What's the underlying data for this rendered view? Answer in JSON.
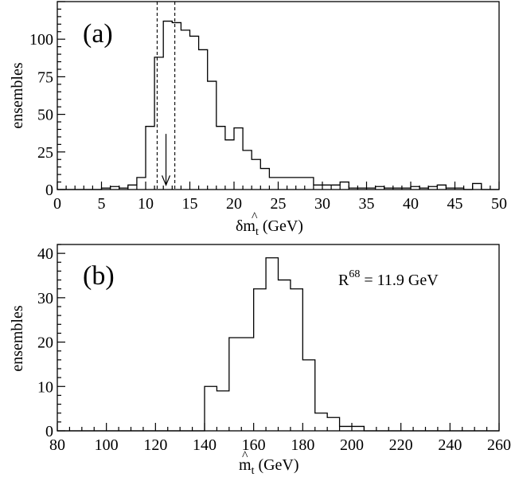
{
  "chart_data": [
    {
      "type": "histogram",
      "panel_label": "(a)",
      "ylabel": "ensembles",
      "xlabel": {
        "main": "δm",
        "hat": "^",
        "sub": "t",
        "unit": " (GeV)"
      },
      "xlim": [
        0,
        50
      ],
      "ylim": [
        0,
        125
      ],
      "xticks": [
        0,
        5,
        10,
        15,
        20,
        25,
        30,
        35,
        40,
        45,
        50
      ],
      "yticks": [
        0,
        25,
        50,
        75,
        100
      ],
      "bin_width": 1,
      "bins": [
        [
          5,
          1
        ],
        [
          6,
          2
        ],
        [
          7,
          1
        ],
        [
          8,
          3
        ],
        [
          9,
          8
        ],
        [
          10,
          42
        ],
        [
          11,
          88
        ],
        [
          12,
          112
        ],
        [
          13,
          111
        ],
        [
          14,
          106
        ],
        [
          15,
          102
        ],
        [
          16,
          93
        ],
        [
          17,
          72
        ],
        [
          18,
          42
        ],
        [
          19,
          33
        ],
        [
          20,
          41
        ],
        [
          21,
          26
        ],
        [
          22,
          20
        ],
        [
          23,
          14
        ],
        [
          24,
          8
        ],
        [
          25,
          8
        ],
        [
          26,
          8
        ],
        [
          27,
          8
        ],
        [
          28,
          8
        ],
        [
          29,
          3
        ],
        [
          30,
          3
        ],
        [
          31,
          3
        ],
        [
          32,
          5
        ],
        [
          33,
          1
        ],
        [
          34,
          1
        ],
        [
          35,
          1
        ],
        [
          36,
          2
        ],
        [
          37,
          1
        ],
        [
          38,
          1
        ],
        [
          39,
          1
        ],
        [
          40,
          2
        ],
        [
          41,
          1
        ],
        [
          42,
          2
        ],
        [
          43,
          3
        ],
        [
          44,
          1
        ],
        [
          45,
          1
        ],
        [
          47,
          4
        ]
      ],
      "markers": {
        "dashed_lines": [
          11.3,
          13.3
        ],
        "arrow": {
          "x": 12.3,
          "from_y": 37,
          "to_y": 3
        }
      }
    },
    {
      "type": "histogram",
      "panel_label": "(b)",
      "ylabel": "ensembles",
      "xlabel": {
        "main": "m",
        "hat": "^",
        "sub": "t",
        "unit": " (GeV)"
      },
      "xlim": [
        80,
        260
      ],
      "ylim": [
        0,
        42
      ],
      "xticks": [
        80,
        100,
        120,
        140,
        160,
        180,
        200,
        220,
        240,
        260
      ],
      "yticks": [
        0,
        10,
        20,
        30,
        40
      ],
      "bin_width": 5,
      "bins": [
        [
          140,
          10
        ],
        [
          145,
          9
        ],
        [
          150,
          21
        ],
        [
          155,
          21
        ],
        [
          160,
          32
        ],
        [
          165,
          39
        ],
        [
          170,
          34
        ],
        [
          175,
          32
        ],
        [
          180,
          16
        ],
        [
          185,
          4
        ],
        [
          190,
          3
        ],
        [
          195,
          1
        ],
        [
          200,
          1
        ]
      ],
      "annotation": {
        "text": "R",
        "sup": "68",
        "rest": " = 11.9 GeV"
      }
    }
  ]
}
